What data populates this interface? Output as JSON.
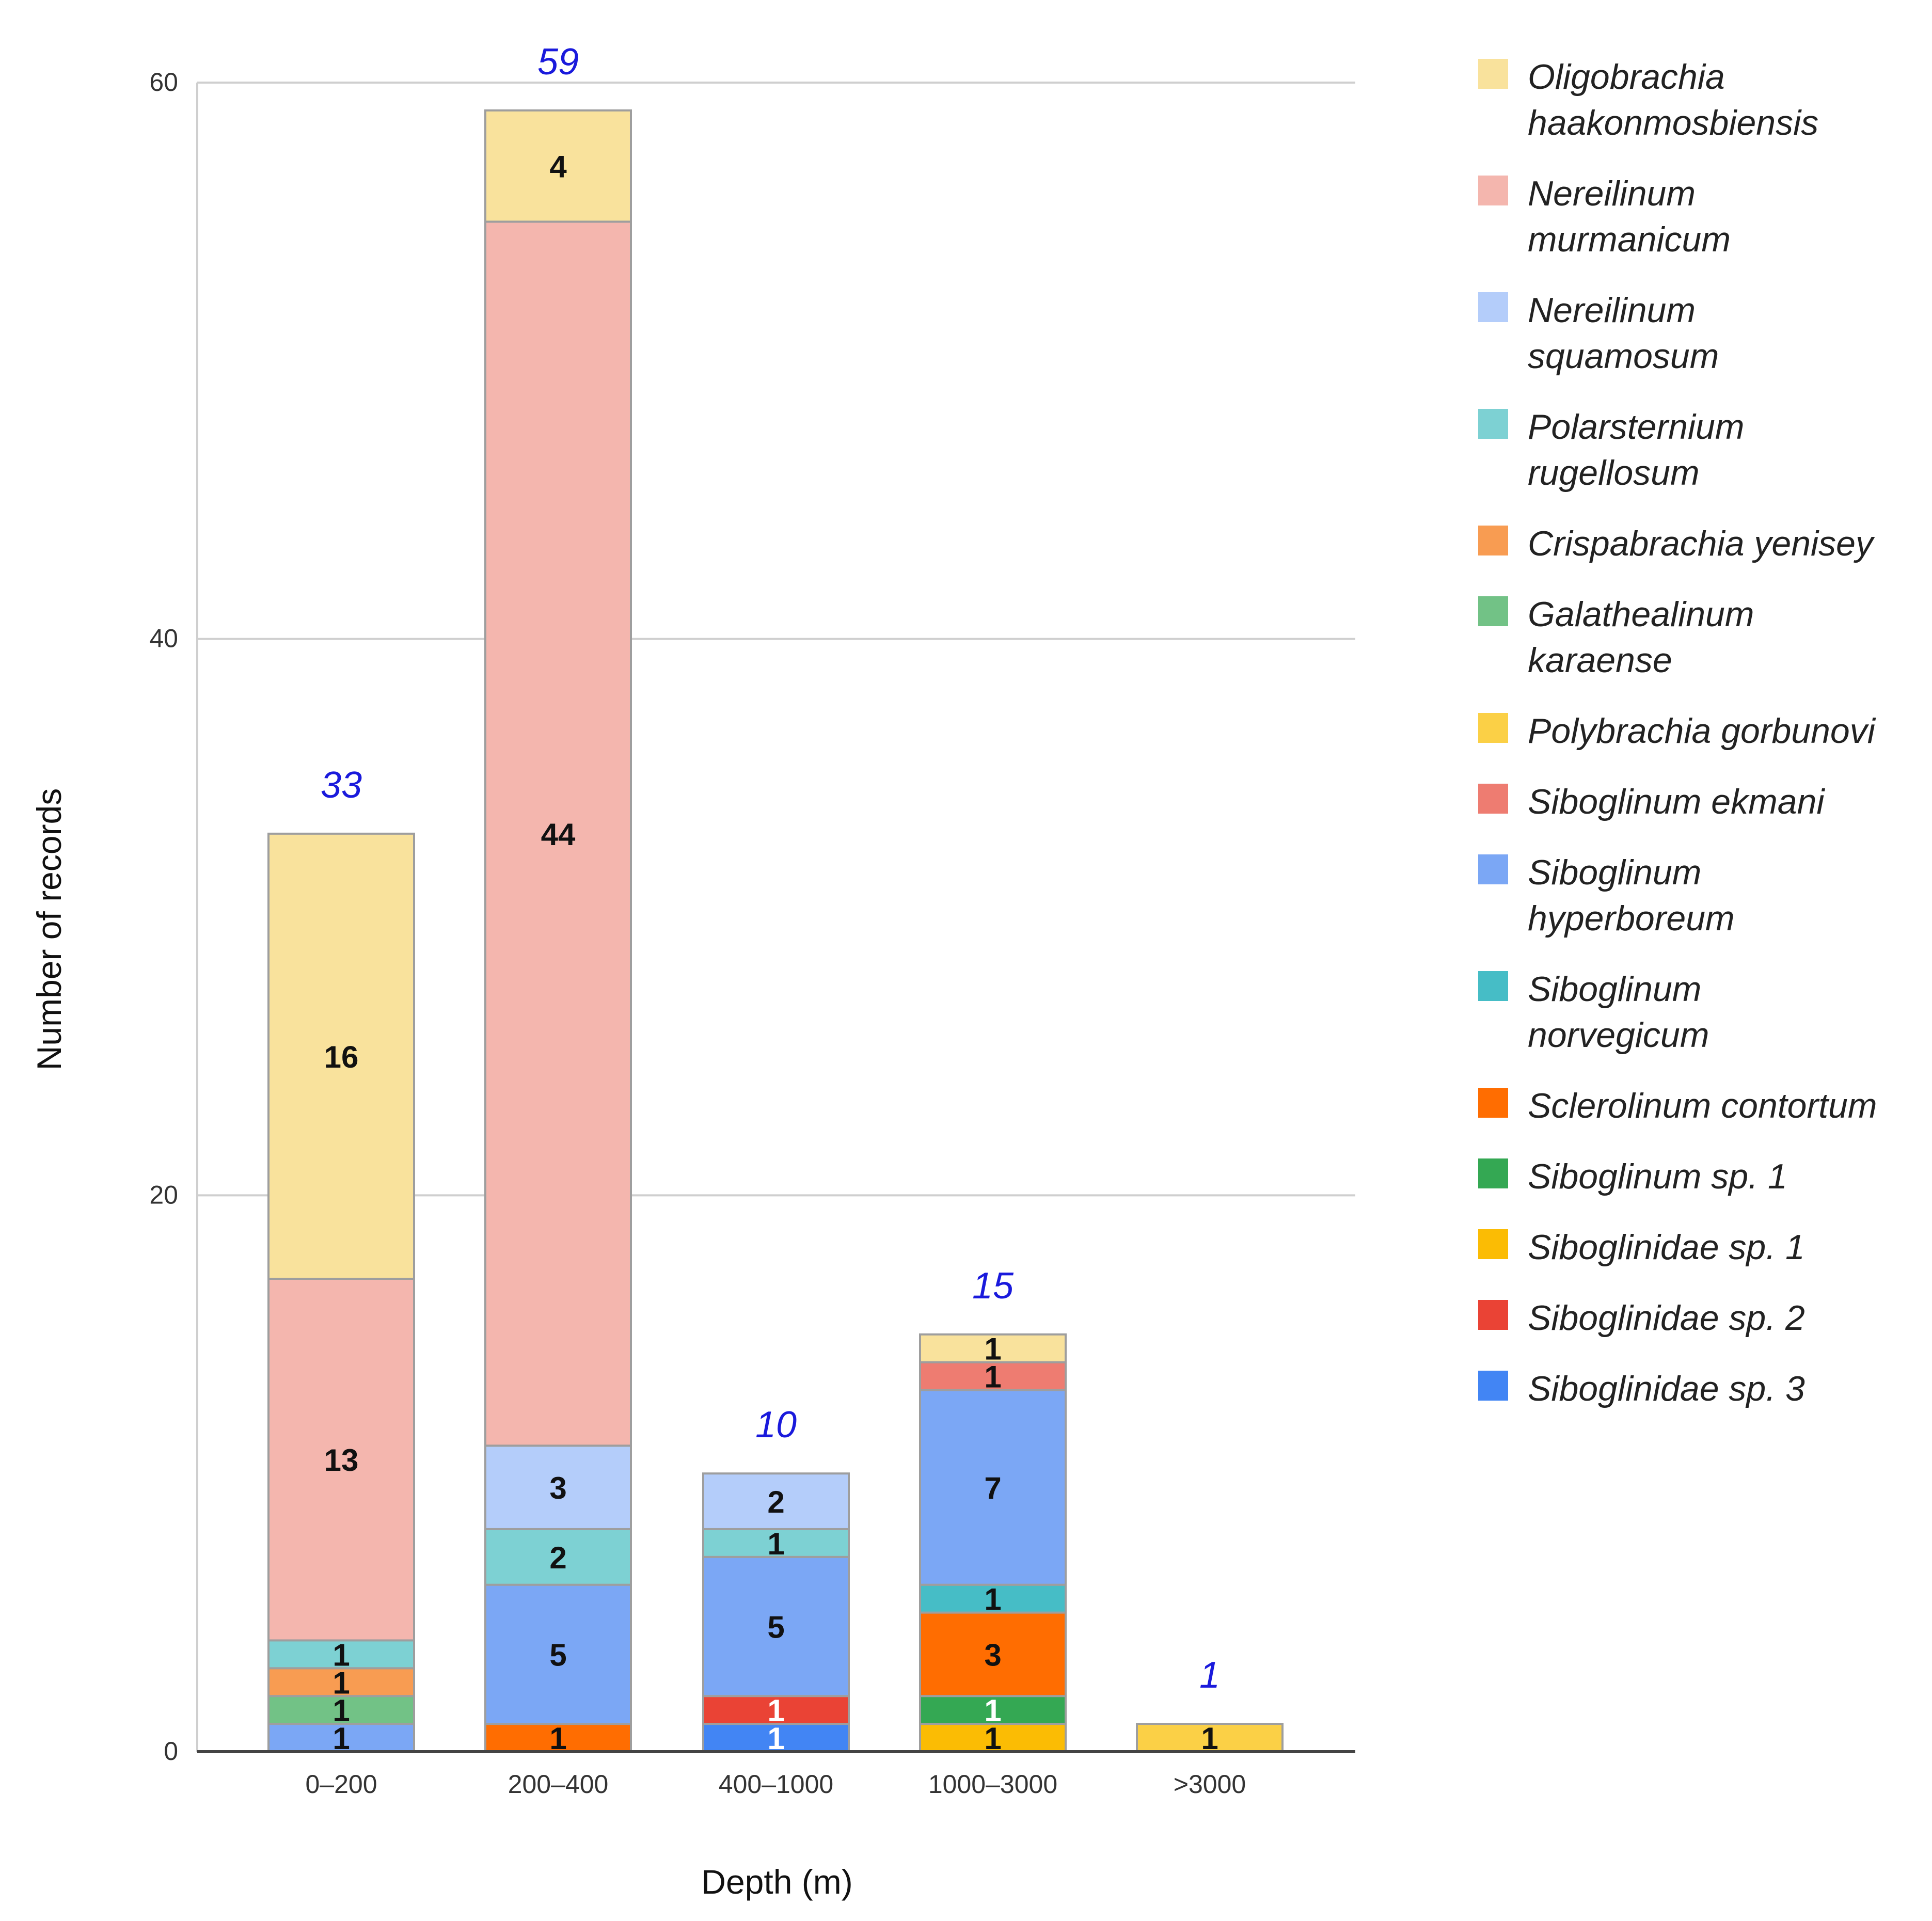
{
  "chart_data": {
    "type": "bar",
    "stacked": true,
    "title": "",
    "xlabel": "Depth (m)",
    "ylabel": "Number of records",
    "ylim": [
      0,
      60
    ],
    "yticks": [
      "0",
      "20",
      "40",
      "60"
    ],
    "grid": true,
    "legend_position": "right",
    "categories": [
      "0–200",
      "200–400",
      "400–1000",
      "1000–3000",
      ">3000"
    ],
    "totals": [
      "33",
      "59",
      "10",
      "15",
      "1"
    ],
    "series": [
      {
        "name": [
          "Oligobrachia",
          "haakonmosbiensis"
        ],
        "color": "#f9e29c",
        "values": [
          16,
          4,
          0,
          1,
          0
        ]
      },
      {
        "name": [
          "Nereilinum",
          "murmanicum"
        ],
        "color": "#f4b6ae",
        "values": [
          13,
          44,
          0,
          0,
          0
        ]
      },
      {
        "name": [
          "Nereilinum",
          "squamosum"
        ],
        "color": "#b4cdfa",
        "values": [
          0,
          3,
          2,
          0,
          0
        ]
      },
      {
        "name": [
          "Polarsternium",
          "rugellosum"
        ],
        "color": "#7dd1d3",
        "values": [
          1,
          2,
          1,
          0,
          0
        ]
      },
      {
        "name": [
          "Crispabrachia yenisey"
        ],
        "color": "#f89c52",
        "values": [
          1,
          0,
          0,
          0,
          0
        ]
      },
      {
        "name": [
          "Galathealinum",
          "karaense"
        ],
        "color": "#72c286",
        "values": [
          1,
          0,
          0,
          0,
          0
        ]
      },
      {
        "name": [
          "Polybrachia gorbunovi"
        ],
        "color": "#fbd046",
        "values": [
          0,
          0,
          0,
          0,
          1
        ]
      },
      {
        "name": [
          "Siboglinum  ekmani"
        ],
        "color": "#ee7c71",
        "values": [
          0,
          0,
          0,
          1,
          0
        ]
      },
      {
        "name": [
          "Siboglinum",
          "hyperboreum"
        ],
        "color": "#7ba7f5",
        "values": [
          1,
          5,
          5,
          7,
          0
        ]
      },
      {
        "name": [
          "Siboglinum",
          "norvegicum"
        ],
        "color": "#46bdc6",
        "values": [
          0,
          0,
          0,
          1,
          0
        ]
      },
      {
        "name": [
          "Sclerolinum contortum"
        ],
        "color": "#ff6d01",
        "values": [
          0,
          1,
          0,
          3,
          0
        ]
      },
      {
        "name": [
          "Siboglinum sp. 1"
        ],
        "color": "#34a853",
        "values": [
          0,
          0,
          0,
          1,
          0
        ]
      },
      {
        "name": [
          "Siboglinidae  sp. 1"
        ],
        "color": "#fbbc04",
        "values": [
          0,
          0,
          0,
          1,
          0
        ]
      },
      {
        "name": [
          "Siboglinidae  sp. 2"
        ],
        "color": "#ea4335",
        "values": [
          0,
          0,
          1,
          0,
          0
        ]
      },
      {
        "name": [
          "Siboglinidae sp. 3"
        ],
        "color": "#4285f4",
        "values": [
          0,
          0,
          1,
          0,
          0
        ]
      }
    ]
  }
}
